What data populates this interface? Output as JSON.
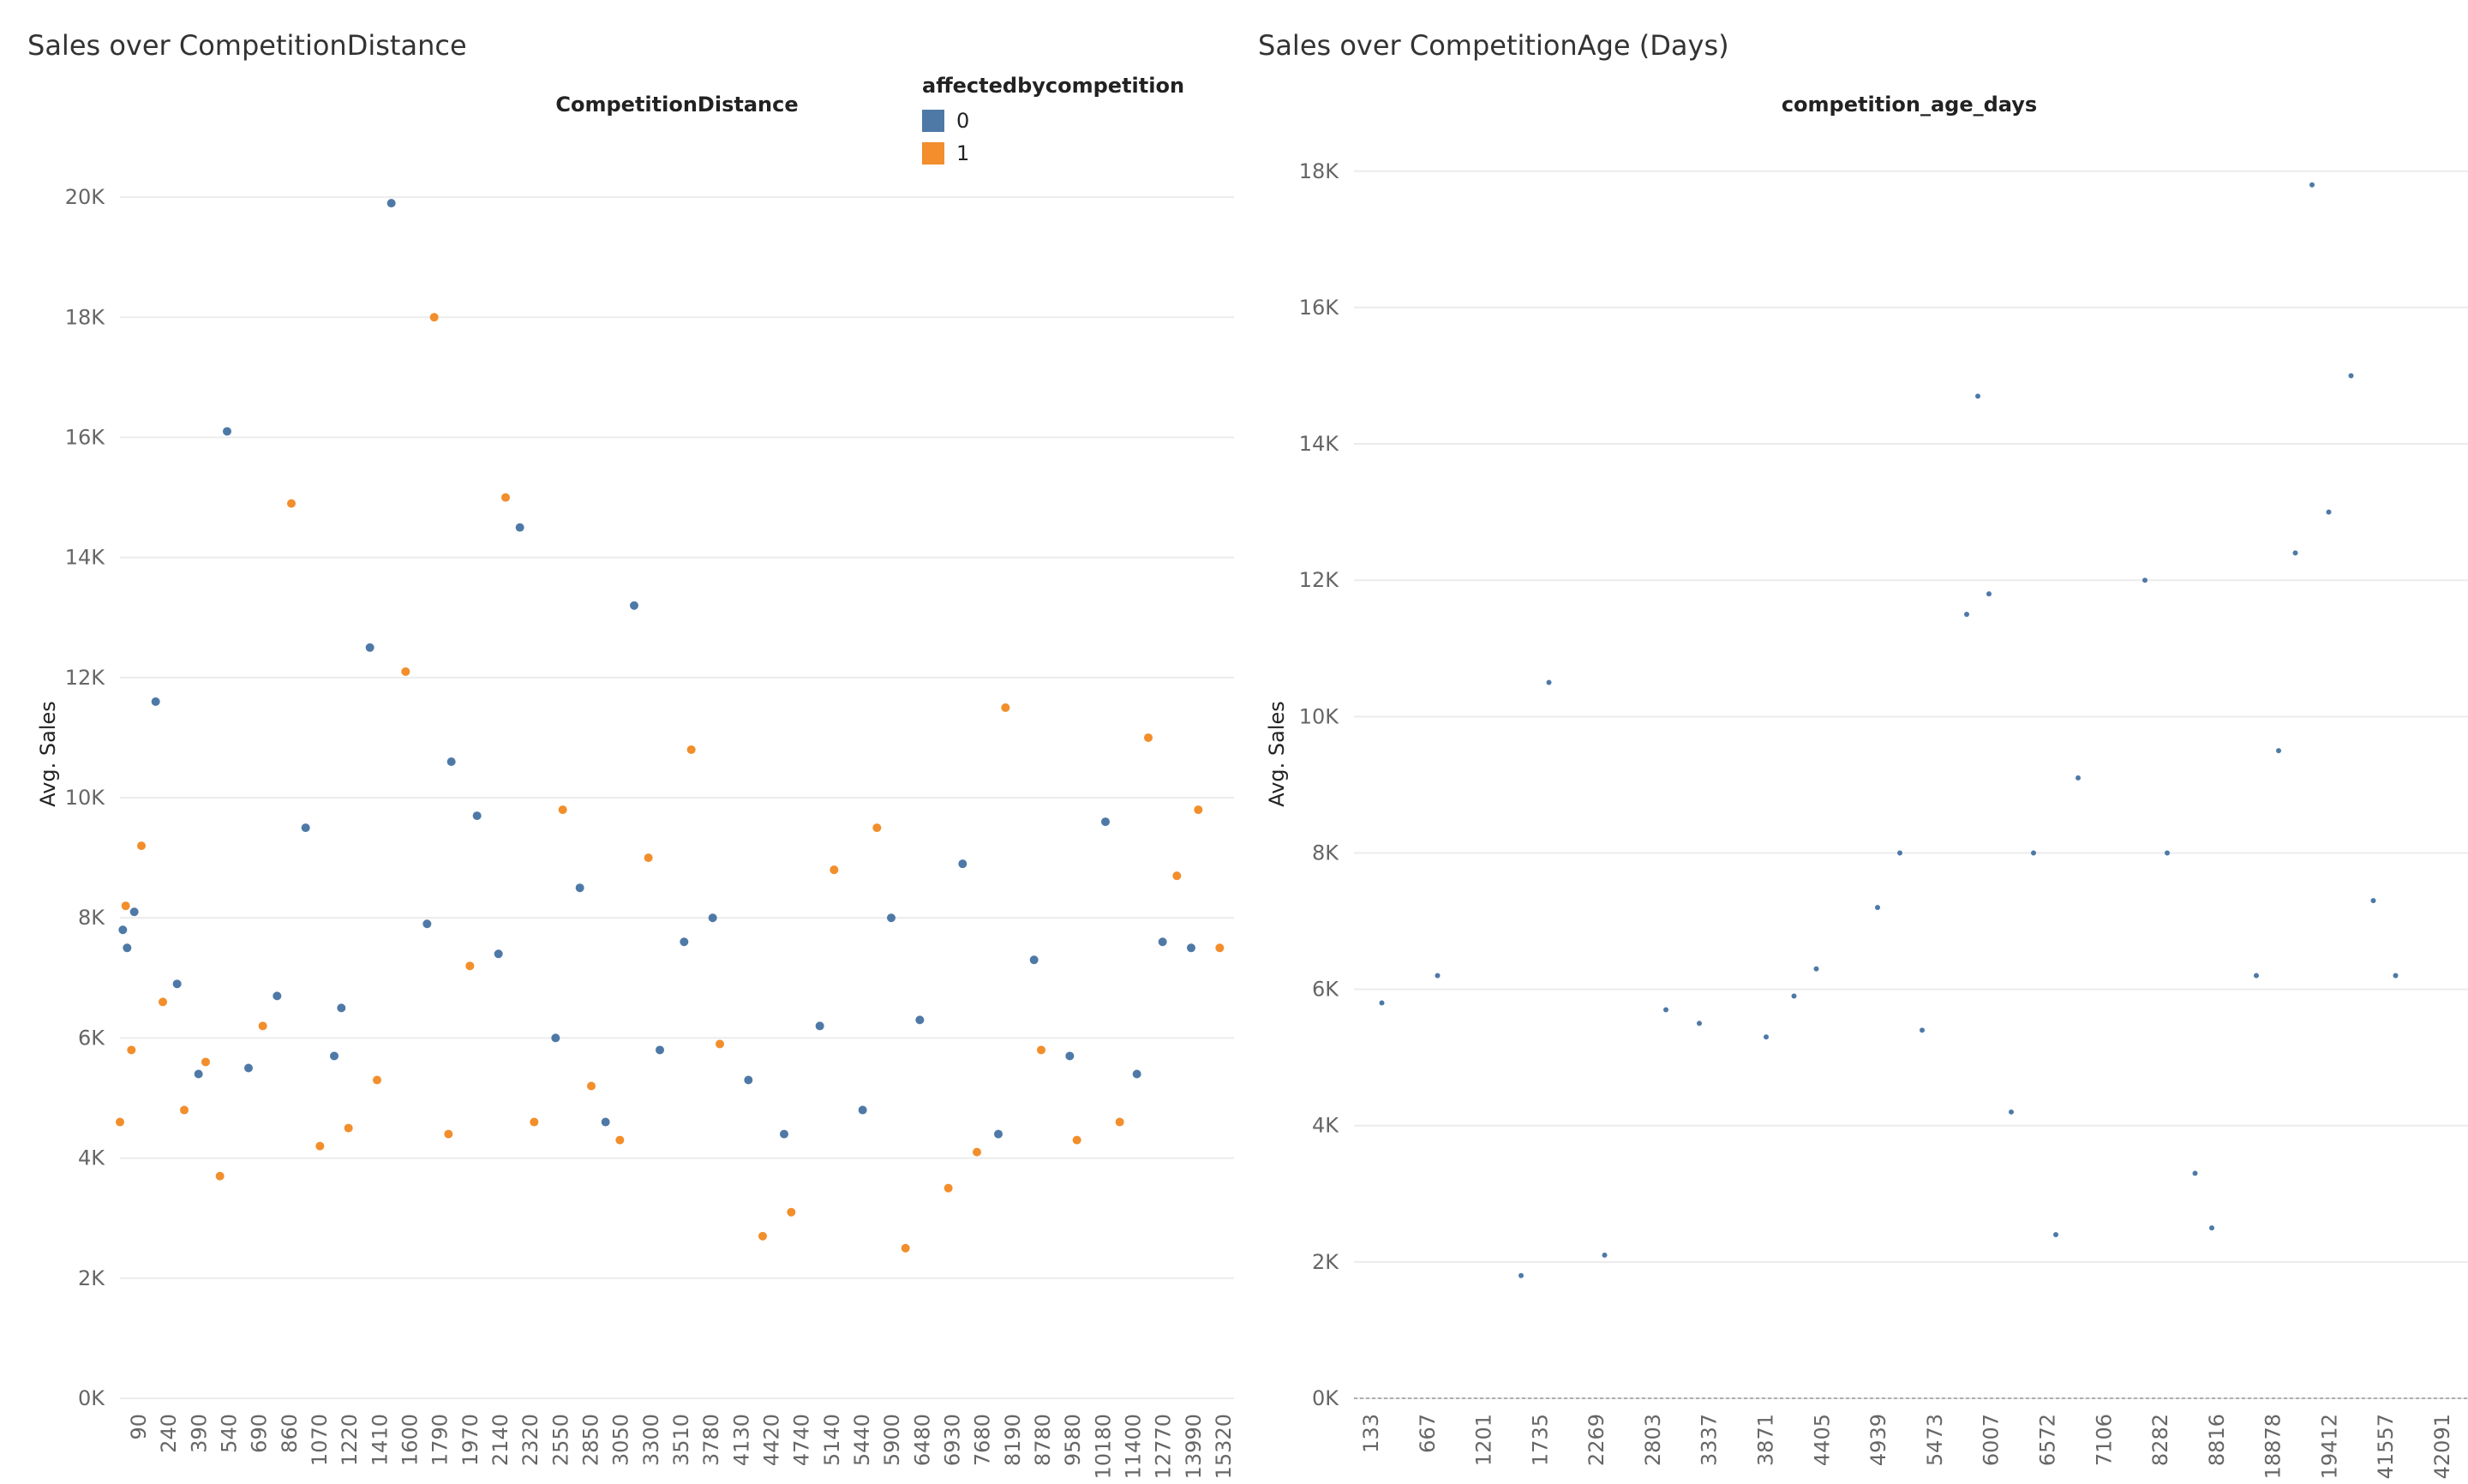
{
  "chart_data": [
    {
      "type": "scatter",
      "title": "Sales over CompetitionDistance",
      "xlabel": "CompetitionDistance",
      "ylabel": "Avg. Sales",
      "ylim": [
        0,
        21000
      ],
      "y_ticks": [
        0,
        2000,
        4000,
        6000,
        8000,
        10000,
        12000,
        14000,
        16000,
        18000,
        20000
      ],
      "y_tick_labels": [
        "0K",
        "2K",
        "4K",
        "6K",
        "8K",
        "10K",
        "12K",
        "14K",
        "16K",
        "18K",
        "20K"
      ],
      "x_tick_labels": [
        "90",
        "240",
        "390",
        "540",
        "690",
        "860",
        "1070",
        "1220",
        "1410",
        "1600",
        "1790",
        "1970",
        "2140",
        "2320",
        "2550",
        "2850",
        "3050",
        "3300",
        "3510",
        "3780",
        "4130",
        "4420",
        "4740",
        "5140",
        "5440",
        "5900",
        "6480",
        "6930",
        "7680",
        "8190",
        "8780",
        "9580",
        "10180",
        "11400",
        "12770",
        "13990",
        "15320"
      ],
      "grid": true,
      "legend": {
        "title": "affectedbycompetition",
        "placement": "top-right",
        "entries": [
          {
            "label": "0",
            "color": "#4e79a7"
          },
          {
            "label": "1",
            "color": "#f28e2b"
          }
        ]
      },
      "series": [
        {
          "name": "0",
          "color": "#4e79a7",
          "x": [
            2,
            5,
            10,
            25,
            40,
            55,
            75,
            90,
            110,
            130,
            150,
            155,
            175,
            190,
            215,
            232,
            250,
            265,
            280,
            305,
            322,
            340,
            360,
            378,
            395,
            415,
            440,
            465,
            490,
            520,
            540,
            560,
            590,
            615,
            640,
            665,
            690,
            712,
            730,
            750
          ],
          "y": [
            7800,
            7500,
            8100,
            11600,
            6900,
            5400,
            16100,
            5500,
            6700,
            9500,
            5700,
            6500,
            12500,
            19900,
            7900,
            10600,
            9700,
            7400,
            14500,
            6000,
            8500,
            4600,
            13200,
            5800,
            7600,
            8000,
            5300,
            4400,
            6200,
            4800,
            8000,
            6300,
            8900,
            4400,
            7300,
            5700,
            9600,
            5400,
            7600,
            7500
          ]
        },
        {
          "name": "1",
          "color": "#f28e2b",
          "x": [
            0,
            4,
            8,
            15,
            30,
            45,
            60,
            70,
            100,
            120,
            140,
            160,
            180,
            200,
            220,
            230,
            245,
            270,
            290,
            310,
            330,
            350,
            370,
            400,
            420,
            450,
            470,
            500,
            530,
            550,
            580,
            600,
            620,
            645,
            670,
            700,
            720,
            740,
            755,
            770
          ],
          "y": [
            4600,
            8200,
            5800,
            9200,
            6600,
            4800,
            5600,
            3700,
            6200,
            14900,
            4200,
            4500,
            5300,
            12100,
            18000,
            4400,
            7200,
            15000,
            4600,
            9800,
            5200,
            4300,
            9000,
            10800,
            5900,
            2700,
            3100,
            8800,
            9500,
            2500,
            3500,
            4100,
            11500,
            5800,
            4300,
            4600,
            11000,
            8700,
            9800,
            7500
          ]
        }
      ]
    },
    {
      "type": "scatter",
      "title": "Sales over CompetitionAge (Days)",
      "xlabel": "competition_age_days",
      "ylabel": "Avg. Sales",
      "ylim": [
        0,
        18500
      ],
      "y_ticks": [
        0,
        2000,
        4000,
        6000,
        8000,
        10000,
        12000,
        14000,
        16000,
        18000
      ],
      "y_tick_labels": [
        "0K",
        "2K",
        "4K",
        "6K",
        "8K",
        "10K",
        "12K",
        "14K",
        "16K",
        "18K"
      ],
      "x_tick_labels": [
        "133",
        "667",
        "1201",
        "1735",
        "2269",
        "2803",
        "3337",
        "3871",
        "4405",
        "4939",
        "5473",
        "6007",
        "6572",
        "7106",
        "8282",
        "8816",
        "18878",
        "19412",
        "41557",
        "42091"
      ],
      "grid": true,
      "series": [
        {
          "name": "",
          "color": "#4e79a7",
          "x": [
            0.5,
            1.5,
            3.0,
            3.5,
            4.5,
            5.6,
            6.2,
            7.4,
            7.9,
            8.3,
            9.4,
            9.8,
            10.2,
            11.0,
            11.2,
            11.4,
            11.8,
            12.2,
            12.6,
            13.0,
            14.2,
            14.6,
            15.1,
            15.4,
            16.2,
            16.6,
            16.9,
            17.2,
            17.5,
            17.9,
            18.3,
            18.7
          ],
          "y": [
            5800,
            6200,
            1800,
            10500,
            2100,
            5700,
            5500,
            5300,
            5900,
            6300,
            7200,
            8000,
            5400,
            11500,
            14700,
            11800,
            4200,
            8000,
            2400,
            9100,
            12000,
            8000,
            3300,
            2500,
            6200,
            9500,
            12400,
            17800,
            13000,
            15000,
            7300,
            6200
          ]
        }
      ]
    }
  ]
}
